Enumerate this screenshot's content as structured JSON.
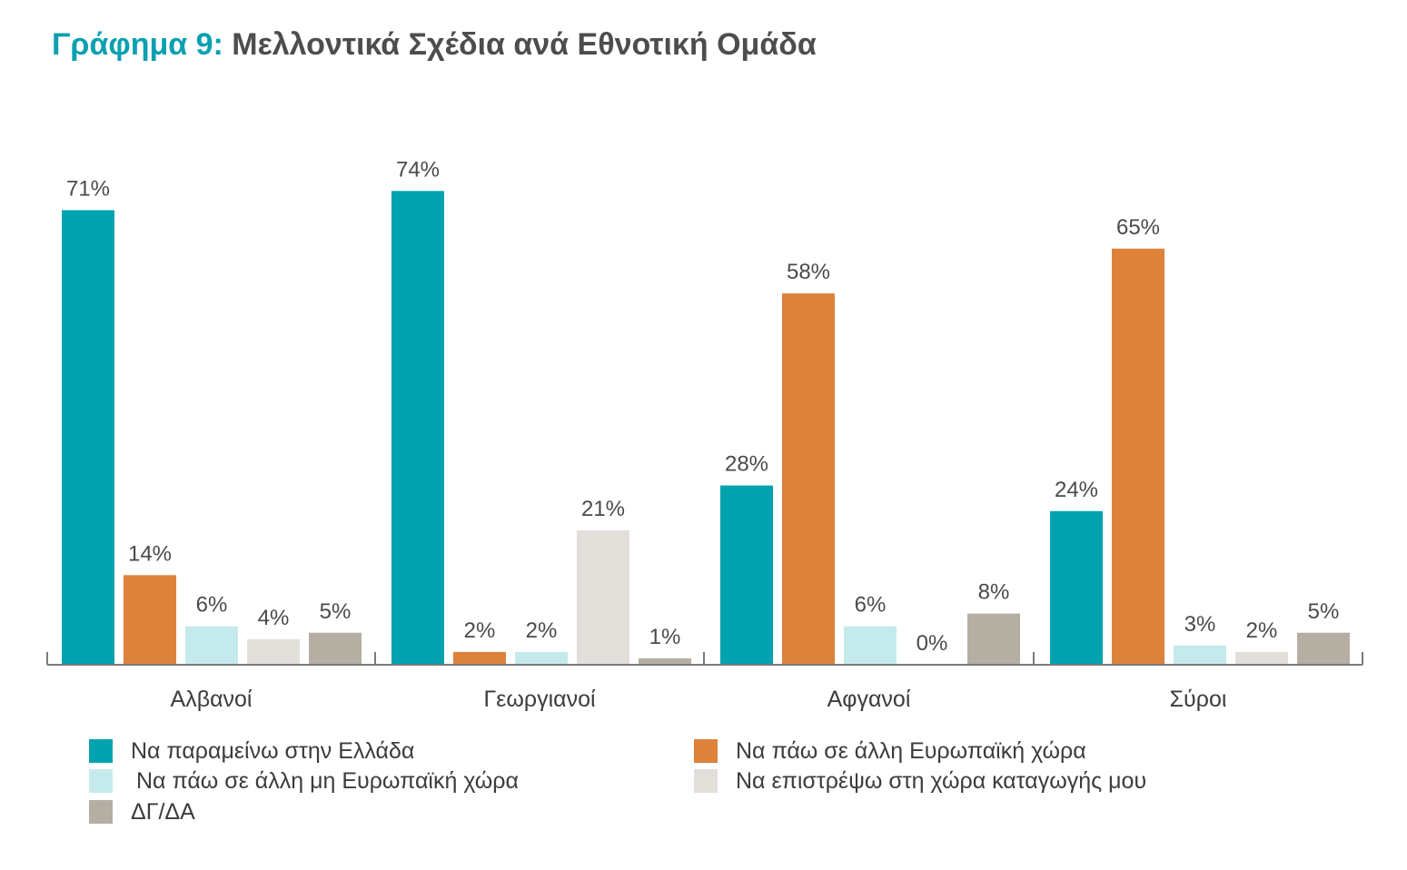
{
  "title": {
    "prefix": "Γράφημα 9:",
    "text": "Μελλοντικά Σχέδια ανά Εθνοτική Ομάδα"
  },
  "chart_data": {
    "type": "bar",
    "categories": [
      "Αλβανοί",
      "Γεωργιανοί",
      "Αφγανοί",
      "Σύροι"
    ],
    "series": [
      {
        "name": "Να παραμείνω στην Ελλάδα",
        "color": "#00a2b0",
        "values": [
          71,
          74,
          28,
          24
        ]
      },
      {
        "name": "Να πάω σε άλλη Ευρωπαϊκή χώρα",
        "color": "#dd823b",
        "values": [
          14,
          2,
          58,
          65
        ]
      },
      {
        "name": "Να πάω σε άλλη μη Ευρωπαϊκή χώρα",
        "color": "#c4eaec",
        "values": [
          6,
          2,
          6,
          3
        ]
      },
      {
        "name": "Να επιστρέψω στη χώρα καταγωγής μου",
        "color": "#e2dfdb",
        "values": [
          4,
          21,
          0,
          2
        ]
      },
      {
        "name": "ΔΓ/ΔΑ",
        "color": "#b5aea3",
        "values": [
          5,
          1,
          8,
          5
        ]
      }
    ],
    "value_suffix": "%",
    "ylim": [
      0,
      100
    ],
    "grid": false,
    "legend_position": "bottom"
  }
}
